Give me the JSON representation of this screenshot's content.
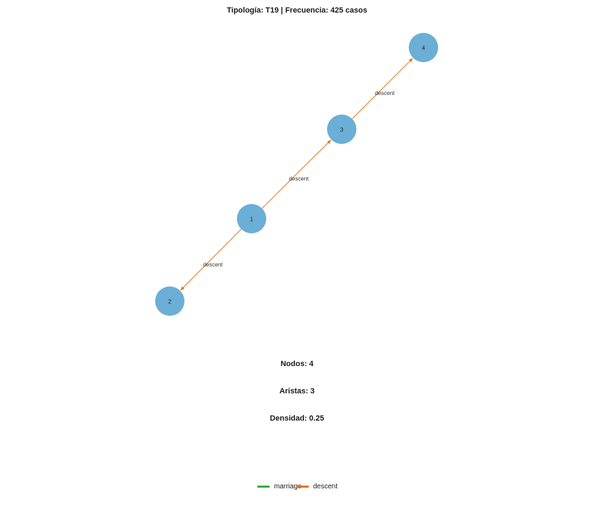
{
  "title": "Tipología: T19 | Frecuencia: 425 casos",
  "colors": {
    "node_fill": "#6baed6",
    "descent": "#e6730f",
    "marriage": "#3aaa3a"
  },
  "nodes": [
    {
      "id": "1",
      "label": "1"
    },
    {
      "id": "2",
      "label": "2"
    },
    {
      "id": "3",
      "label": "3"
    },
    {
      "id": "4",
      "label": "4"
    }
  ],
  "edges": [
    {
      "from": "1",
      "to": "3",
      "type": "descent",
      "label": "descent"
    },
    {
      "from": "3",
      "to": "4",
      "type": "descent",
      "label": "descent"
    },
    {
      "from": "1",
      "to": "2",
      "type": "descent",
      "label": "descent"
    }
  ],
  "stats": {
    "nodes": "Nodos: 4",
    "edges": "Aristas: 3",
    "density": "Densidad: 0.25"
  },
  "legend": [
    {
      "label": "marriage",
      "color": "#3aaa3a"
    },
    {
      "label": "descent",
      "color": "#e6730f"
    }
  ]
}
